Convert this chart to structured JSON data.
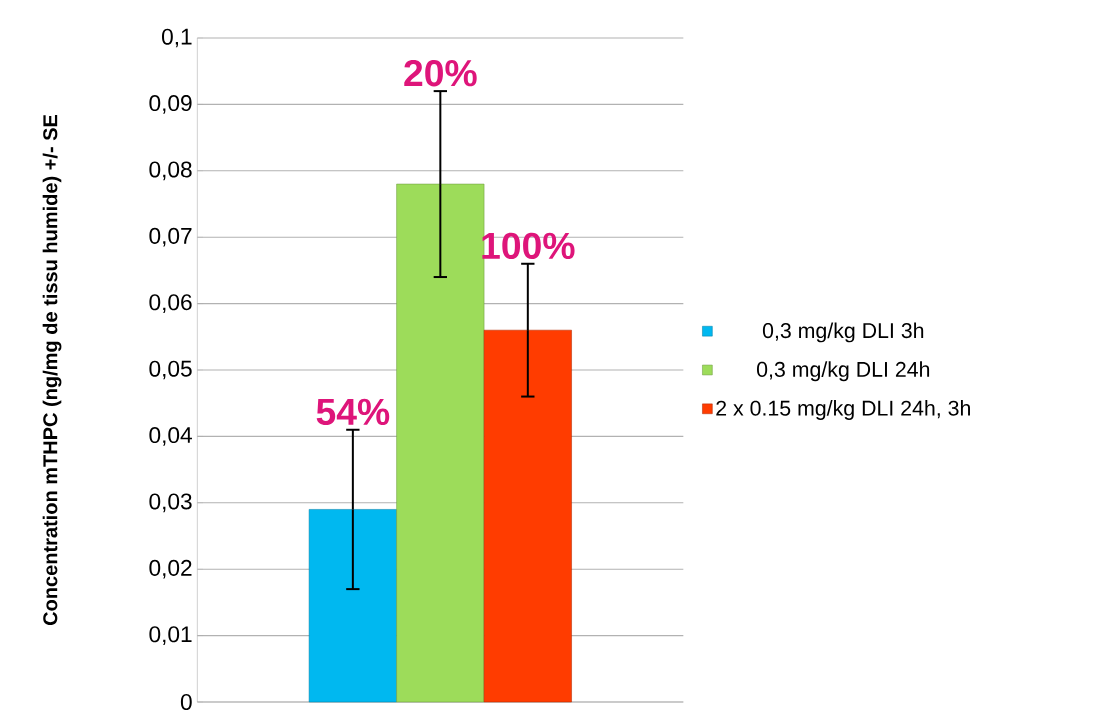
{
  "chart_data": {
    "type": "bar",
    "ylabel": "Concentration mTHPC (ng/mg de tissu humide) +/- SE",
    "categories": [
      null
    ],
    "series": [
      {
        "name": "0,3 mg/kg DLI 3h",
        "color": "#00b8f0",
        "values": [
          0.029
        ],
        "errors": [
          0.012
        ]
      },
      {
        "name": "0,3 mg/kg DLI 24h",
        "color": "#9ddc5a",
        "values": [
          0.078
        ],
        "errors": [
          0.014
        ]
      },
      {
        "name": "2 x 0.15 mg/kg DLI 24h, 3h",
        "color": "#ff3c00",
        "values": [
          0.056
        ],
        "errors": [
          0.01
        ]
      }
    ],
    "annotations": [
      "54%",
      "20%",
      "100%"
    ],
    "ylim": [
      0,
      0.1
    ],
    "yticks": [
      0,
      {
        "value": 0.01,
        "label": "0,01"
      },
      {
        "value": 0.02,
        "label": "0,02"
      },
      {
        "value": 0.03,
        "label": "0,03"
      },
      {
        "value": 0.04,
        "label": "0,04"
      },
      {
        "value": 0.05,
        "label": "0,05"
      },
      {
        "value": 0.06,
        "label": "0,06"
      },
      {
        "value": 0.07,
        "label": "0,07"
      },
      {
        "value": 0.08,
        "label": "0,08"
      },
      {
        "value": 0.09,
        "label": "0,09"
      },
      {
        "value": 0.1,
        "label": "0,1"
      }
    ],
    "grid": "y",
    "legend": "right"
  }
}
